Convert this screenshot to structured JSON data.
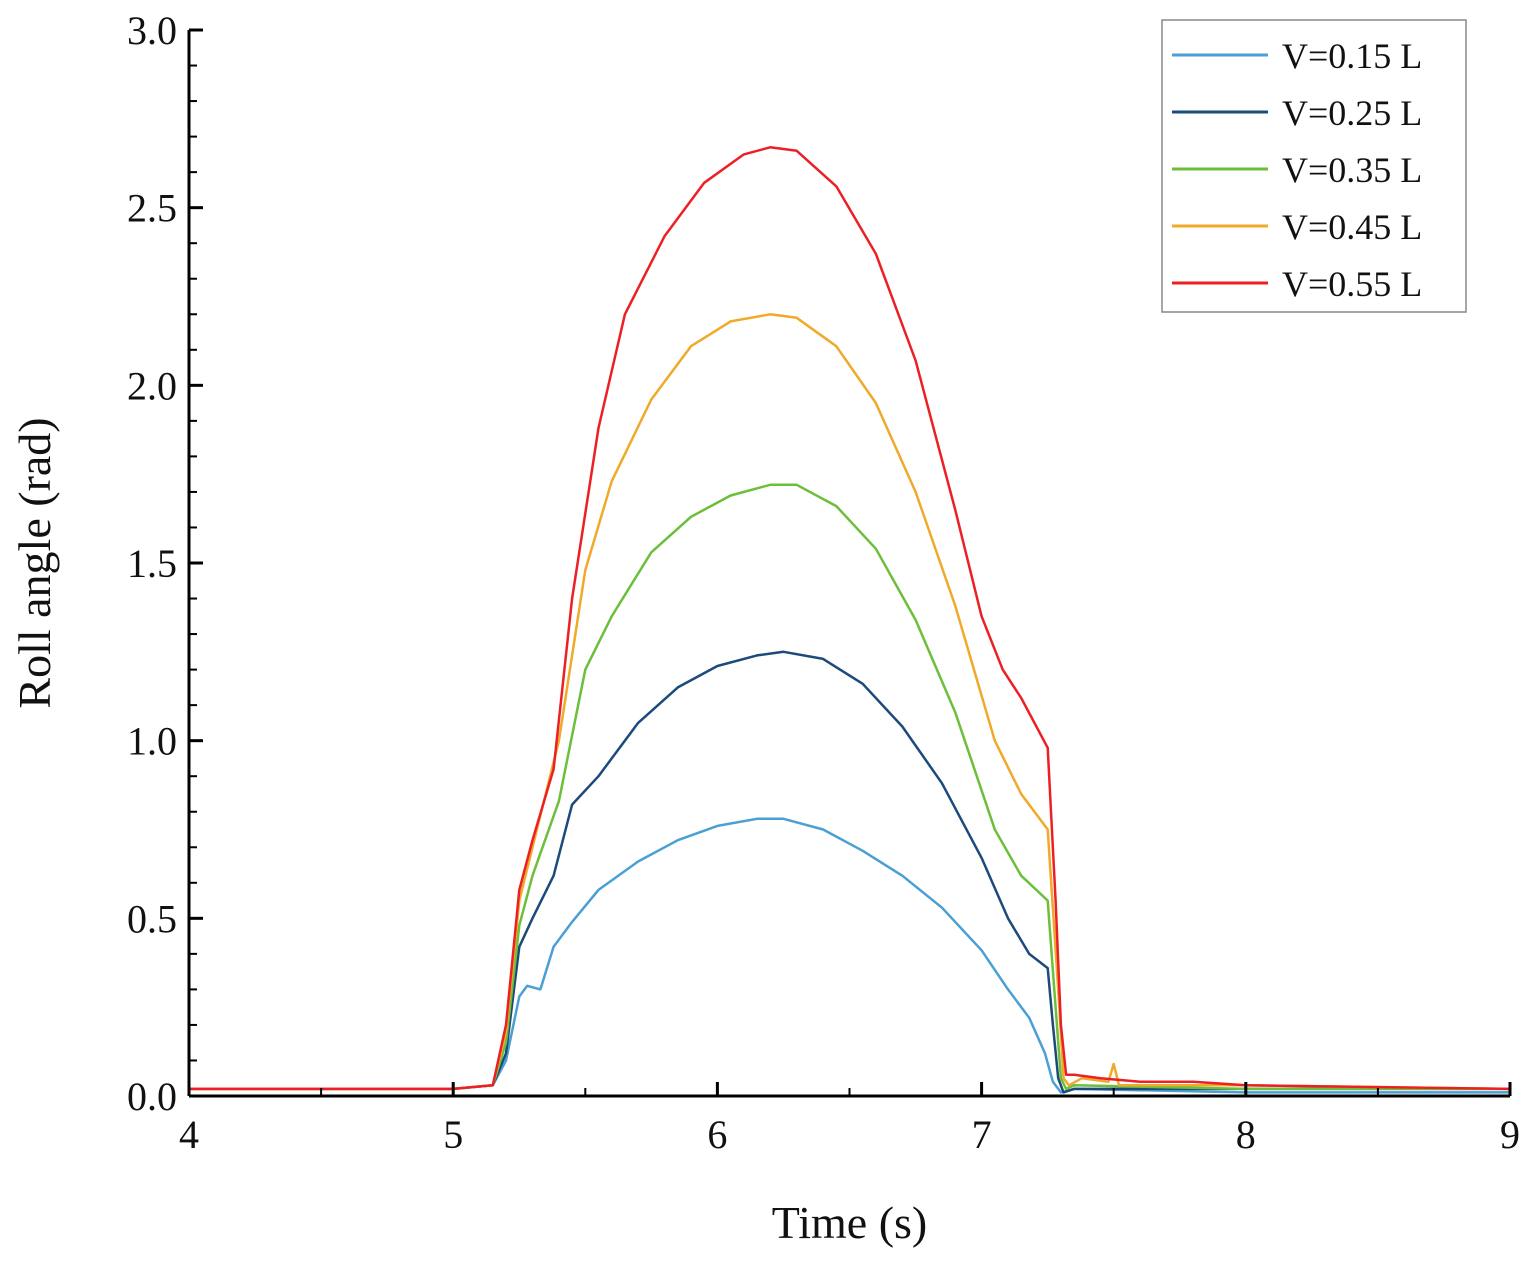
{
  "chart_data": {
    "type": "line",
    "title": "",
    "xlabel": "Time (s)",
    "ylabel": "Roll angle (rad)",
    "xlim": [
      4,
      9
    ],
    "ylim": [
      0.0,
      3.0
    ],
    "xticks": [
      4,
      5,
      6,
      7,
      8,
      9
    ],
    "xtick_labels": [
      "4",
      "5",
      "6",
      "7",
      "8",
      "9"
    ],
    "yticks": [
      0.0,
      0.5,
      1.0,
      1.5,
      2.0,
      2.5,
      3.0
    ],
    "ytick_labels": [
      "0.0",
      "0.5",
      "1.0",
      "1.5",
      "2.0",
      "2.5",
      "3.0"
    ],
    "grid": false,
    "legend_position": "top-right",
    "series": [
      {
        "name": "V=0.15 L",
        "color": "#4a9fd4",
        "x": [
          4.0,
          5.0,
          5.15,
          5.2,
          5.25,
          5.28,
          5.33,
          5.38,
          5.45,
          5.55,
          5.7,
          5.85,
          6.0,
          6.15,
          6.25,
          6.4,
          6.55,
          6.7,
          6.85,
          7.0,
          7.1,
          7.18,
          7.24,
          7.27,
          7.3,
          7.35,
          8.0,
          9.0
        ],
        "values": [
          0.02,
          0.02,
          0.03,
          0.1,
          0.28,
          0.31,
          0.3,
          0.42,
          0.49,
          0.58,
          0.66,
          0.72,
          0.76,
          0.78,
          0.78,
          0.75,
          0.69,
          0.62,
          0.53,
          0.41,
          0.3,
          0.22,
          0.12,
          0.04,
          0.01,
          0.02,
          0.01,
          0.01
        ]
      },
      {
        "name": "V=0.25 L",
        "color": "#1c4a7a",
        "x": [
          4.0,
          5.0,
          5.15,
          5.2,
          5.25,
          5.3,
          5.38,
          5.45,
          5.55,
          5.7,
          5.85,
          6.0,
          6.15,
          6.25,
          6.4,
          6.55,
          6.7,
          6.85,
          7.0,
          7.1,
          7.18,
          7.25,
          7.27,
          7.29,
          7.31,
          7.35,
          8.0,
          9.0
        ],
        "values": [
          0.02,
          0.02,
          0.03,
          0.12,
          0.42,
          0.5,
          0.62,
          0.82,
          0.9,
          1.05,
          1.15,
          1.21,
          1.24,
          1.25,
          1.23,
          1.16,
          1.04,
          0.88,
          0.67,
          0.5,
          0.4,
          0.36,
          0.2,
          0.05,
          0.01,
          0.02,
          0.02,
          0.02
        ]
      },
      {
        "name": "V=0.35 L",
        "color": "#6cbf3a",
        "x": [
          4.0,
          5.0,
          5.15,
          5.2,
          5.25,
          5.3,
          5.4,
          5.5,
          5.6,
          5.75,
          5.9,
          6.05,
          6.2,
          6.3,
          6.45,
          6.6,
          6.75,
          6.9,
          7.05,
          7.15,
          7.25,
          7.28,
          7.3,
          7.32,
          7.35,
          8.0,
          9.0
        ],
        "values": [
          0.02,
          0.02,
          0.03,
          0.15,
          0.48,
          0.62,
          0.83,
          1.2,
          1.35,
          1.53,
          1.63,
          1.69,
          1.72,
          1.72,
          1.66,
          1.54,
          1.34,
          1.08,
          0.75,
          0.62,
          0.55,
          0.25,
          0.05,
          0.02,
          0.03,
          0.02,
          0.02
        ]
      },
      {
        "name": "V=0.45 L",
        "color": "#f0a929",
        "x": [
          4.0,
          5.0,
          5.15,
          5.2,
          5.25,
          5.3,
          5.4,
          5.5,
          5.6,
          5.75,
          5.9,
          6.05,
          6.2,
          6.3,
          6.45,
          6.6,
          6.75,
          6.9,
          7.05,
          7.15,
          7.25,
          7.29,
          7.31,
          7.33,
          7.38,
          7.48,
          7.5,
          7.52,
          8.0,
          9.0
        ],
        "values": [
          0.02,
          0.02,
          0.03,
          0.18,
          0.55,
          0.7,
          1.0,
          1.48,
          1.73,
          1.96,
          2.11,
          2.18,
          2.2,
          2.19,
          2.11,
          1.95,
          1.7,
          1.38,
          1.0,
          0.85,
          0.75,
          0.3,
          0.05,
          0.03,
          0.05,
          0.04,
          0.09,
          0.03,
          0.03,
          0.02
        ]
      },
      {
        "name": "V=0.55 L",
        "color": "#ec2024",
        "x": [
          4.0,
          5.0,
          5.15,
          5.2,
          5.25,
          5.3,
          5.38,
          5.45,
          5.55,
          5.65,
          5.8,
          5.95,
          6.1,
          6.2,
          6.3,
          6.45,
          6.6,
          6.75,
          6.9,
          7.0,
          7.08,
          7.15,
          7.25,
          7.28,
          7.3,
          7.32,
          7.35,
          7.45,
          7.6,
          7.8,
          8.0,
          9.0
        ],
        "values": [
          0.02,
          0.02,
          0.03,
          0.2,
          0.58,
          0.72,
          0.92,
          1.4,
          1.88,
          2.2,
          2.42,
          2.57,
          2.65,
          2.67,
          2.66,
          2.56,
          2.37,
          2.07,
          1.65,
          1.35,
          1.2,
          1.12,
          0.98,
          0.55,
          0.2,
          0.06,
          0.06,
          0.05,
          0.04,
          0.04,
          0.03,
          0.02
        ]
      }
    ]
  }
}
